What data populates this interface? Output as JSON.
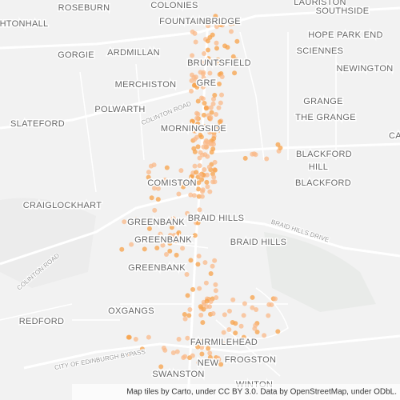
{
  "places": [
    "ROSEBURN",
    "COLONIES",
    "LAURISTON",
    "SOUTHSIDE",
    "HTONHALL",
    "FOUNTAINBRIDGE",
    "HOPE PARK END",
    "GORGIE",
    "ARDMILLAN",
    "BRUNTSFIELD",
    "SCIENNES",
    "NEWINGTON",
    "MERCHISTON",
    "GRE",
    "POLWARTH",
    "GRANGE",
    "THE GRANGE",
    "SLATEFORD",
    "MORNINGSIDE",
    "CA",
    "BLACKFORD",
    "HILL",
    "COMISTON",
    "BLACKFORD",
    "CRAIGLOCKHART",
    "BRAID HILLS",
    "GREENBANK",
    "GREENBANK",
    "BRAID HILLS",
    "GREENBANK",
    "OXGANGS",
    "REDFORD",
    "FAIRMILEHEAD",
    "NEW",
    "SWANSTON",
    "FROGSTON",
    "WINTON"
  ],
  "roads": [
    "COLINTON ROAD",
    "BRAID HILLS DRIVE",
    "COLINTON ROAD",
    "CITY OF EDINBURGH BYPASS"
  ],
  "attribution": "Map tiles by Carto, under CC BY 3.0. Data by OpenStreetMap, under ODbL."
}
